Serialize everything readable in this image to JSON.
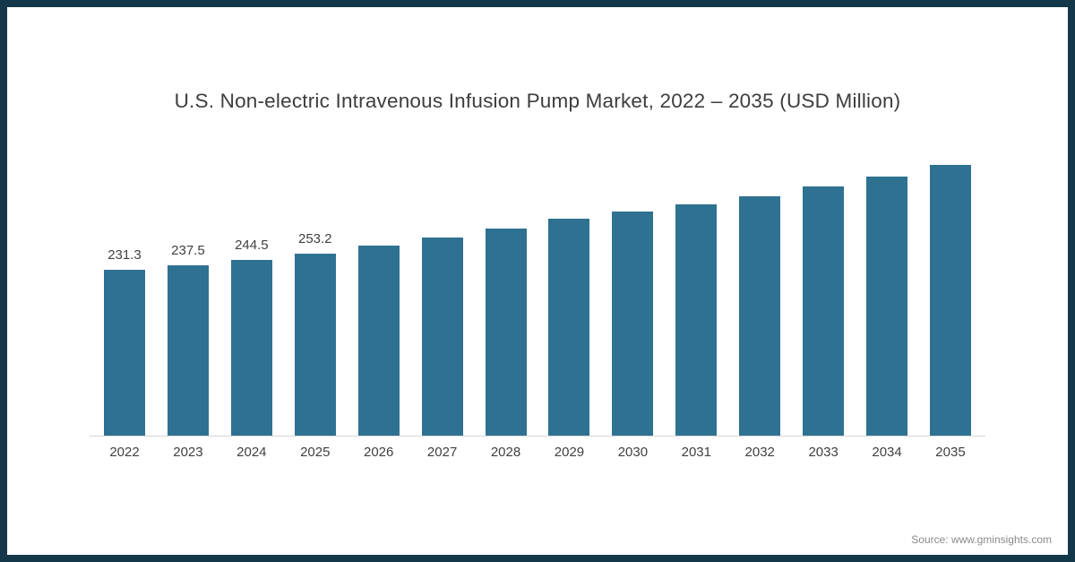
{
  "frame": {
    "border_color": "#14384a",
    "background": "#ffffff"
  },
  "chart_data": {
    "type": "bar",
    "title": "U.S. Non-electric Intravenous Infusion Pump Market, 2022 – 2035 (USD Million)",
    "categories": [
      "2022",
      "2023",
      "2024",
      "2025",
      "2026",
      "2027",
      "2028",
      "2029",
      "2030",
      "2031",
      "2032",
      "2033",
      "2034",
      "2035"
    ],
    "values": [
      231.3,
      237.5,
      244.5,
      253.2,
      265,
      276,
      289,
      302,
      312,
      322,
      334,
      347,
      361,
      378
    ],
    "data_labels": [
      "231.3",
      "237.5",
      "244.5",
      "253.2",
      "",
      "",
      "",
      "",
      "",
      "",
      "",
      "",
      "",
      ""
    ],
    "bar_color": "#2e7191",
    "xlabel": "",
    "ylabel": "",
    "ylim": [
      0,
      400
    ],
    "grid": false,
    "legend": "none"
  },
  "source": {
    "text": "Source: www.gminsights.com"
  }
}
